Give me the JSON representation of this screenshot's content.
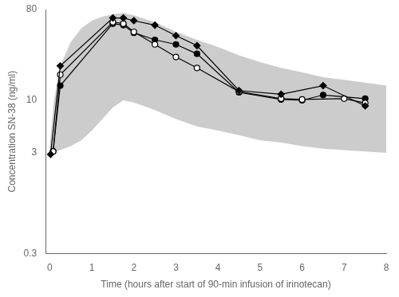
{
  "chart_data": {
    "type": "line",
    "xlabel": "Time (hours after start of 90-min infusion of irinotecan)",
    "ylabel": "Concentration SN-38 (ng/ml)",
    "log": "y",
    "grid": false,
    "xlim": [
      -0.1,
      8
    ],
    "xticks": [
      0,
      1,
      2,
      3,
      4,
      5,
      6,
      7,
      8
    ],
    "ylim": [
      0.3,
      80
    ],
    "yticks": [
      0.3,
      3,
      10,
      80
    ],
    "band": {
      "x": [
        0.0,
        0.1,
        0.25,
        0.5,
        0.75,
        1.0,
        1.25,
        1.5,
        1.75,
        2.0,
        2.5,
        3.0,
        3.5,
        4.0,
        4.5,
        5.0,
        5.5,
        6.0,
        6.5,
        7.0,
        7.5,
        8.0
      ],
      "upper": [
        3.5,
        10,
        22,
        38,
        52,
        62,
        68,
        72,
        74,
        70,
        60,
        48,
        40,
        34,
        28,
        24,
        21,
        19,
        17,
        16,
        15,
        14
      ],
      "lower": [
        3.0,
        3.0,
        3.2,
        3.5,
        4.0,
        5.0,
        6.5,
        8.5,
        10,
        9.5,
        8.0,
        6.5,
        5.5,
        5.0,
        4.5,
        4.0,
        3.8,
        3.5,
        3.3,
        3.2,
        3.1,
        3.0
      ],
      "color": "#cccccc"
    },
    "series": [
      {
        "color": "black",
        "marker": "diamond",
        "x": [
          0.02,
          0.25,
          1.5,
          1.75,
          2.0,
          2.5,
          3.0,
          3.5,
          4.5,
          5.5,
          6.5,
          7.5
        ],
        "values": [
          2.9,
          22,
          66,
          66,
          62,
          56,
          44,
          35,
          12.5,
          11.5,
          14.0,
          8.8
        ]
      },
      {
        "color": "black",
        "marker": "open_circle",
        "x": [
          0.08,
          0.25,
          1.5,
          1.75,
          2.0,
          2.5,
          3.0,
          3.5,
          4.5,
          5.5,
          6.0,
          7.0,
          7.5
        ],
        "values": [
          3.1,
          18,
          60,
          58,
          48,
          36,
          27,
          21,
          12.2,
          10.4,
          10.2,
          10.4,
          9.4
        ]
      },
      {
        "color": "black",
        "marker": "circle",
        "x": [
          0.08,
          0.25,
          1.5,
          1.75,
          2.0,
          2.5,
          3.0,
          3.5,
          4.5,
          5.5,
          6.0,
          6.5,
          7.5
        ],
        "values": [
          3.1,
          14,
          58,
          56,
          47,
          40,
          36,
          29,
          12.0,
          10.2,
          10.0,
          11.3,
          10.4
        ]
      }
    ]
  }
}
